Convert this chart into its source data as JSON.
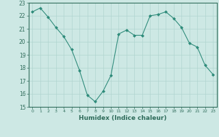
{
  "x": [
    0,
    1,
    2,
    3,
    4,
    5,
    6,
    7,
    8,
    9,
    10,
    11,
    12,
    13,
    14,
    15,
    16,
    17,
    18,
    19,
    20,
    21,
    22,
    23
  ],
  "y": [
    22.3,
    22.6,
    21.9,
    21.1,
    20.4,
    19.4,
    17.8,
    15.9,
    15.4,
    16.2,
    17.4,
    20.6,
    20.9,
    20.5,
    20.5,
    22.0,
    22.1,
    22.3,
    21.8,
    21.1,
    19.9,
    19.6,
    18.2,
    17.5
  ],
  "line_color": "#2e8b7a",
  "marker": "D",
  "marker_size": 2.0,
  "bg_color": "#cde8e4",
  "grid_color": "#b0d4cf",
  "tick_color": "#2e6b5a",
  "label_color": "#2e6b5a",
  "xlabel": "Humidex (Indice chaleur)",
  "ylabel": "",
  "ylim": [
    15,
    23
  ],
  "xlim": [
    -0.5,
    23.5
  ],
  "yticks": [
    15,
    16,
    17,
    18,
    19,
    20,
    21,
    22,
    23
  ],
  "xticks": [
    0,
    1,
    2,
    3,
    4,
    5,
    6,
    7,
    8,
    9,
    10,
    11,
    12,
    13,
    14,
    15,
    16,
    17,
    18,
    19,
    20,
    21,
    22,
    23
  ]
}
